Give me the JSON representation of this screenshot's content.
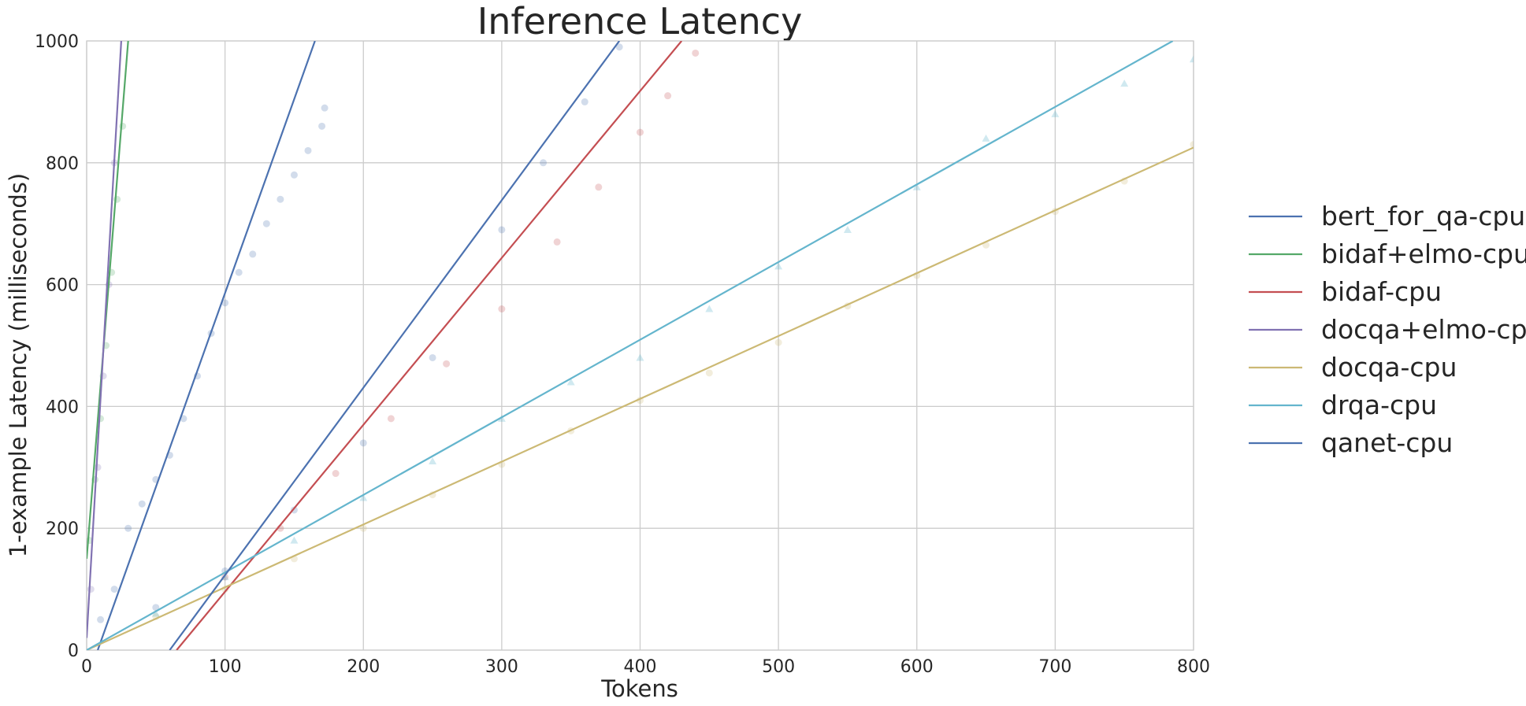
{
  "chart_data": {
    "type": "scatter",
    "title": "Inference Latency",
    "xlabel": "Tokens",
    "ylabel": "1-example Latency (milliseconds)",
    "xlim": [
      0,
      800
    ],
    "ylim": [
      0,
      1000
    ],
    "xticks": [
      "0",
      "100",
      "200",
      "300",
      "400",
      "500",
      "600",
      "700",
      "800"
    ],
    "yticks": [
      "0",
      "200",
      "400",
      "600",
      "800",
      "1000"
    ],
    "grid": true,
    "legend_position": "right",
    "series": [
      {
        "name": "bert_for_qa-cpu",
        "color": "#4c72b0",
        "marker": "circle",
        "fit_line": [
          [
            8,
            0
          ],
          [
            165,
            1000
          ]
        ],
        "points": [
          [
            10,
            50
          ],
          [
            20,
            100
          ],
          [
            30,
            200
          ],
          [
            40,
            240
          ],
          [
            50,
            280
          ],
          [
            60,
            320
          ],
          [
            70,
            380
          ],
          [
            80,
            450
          ],
          [
            90,
            520
          ],
          [
            100,
            570
          ],
          [
            110,
            620
          ],
          [
            120,
            650
          ],
          [
            130,
            700
          ],
          [
            140,
            740
          ],
          [
            150,
            780
          ],
          [
            160,
            820
          ],
          [
            170,
            860
          ],
          [
            172,
            890
          ]
        ]
      },
      {
        "name": "bidaf+elmo-cpu",
        "color": "#55a868",
        "marker": "circle",
        "fit_line": [
          [
            0,
            150
          ],
          [
            30,
            1000
          ]
        ],
        "points": [
          [
            2,
            180
          ],
          [
            6,
            280
          ],
          [
            10,
            380
          ],
          [
            14,
            500
          ],
          [
            18,
            620
          ],
          [
            22,
            740
          ],
          [
            26,
            860
          ]
        ]
      },
      {
        "name": "bidaf-cpu",
        "color": "#c44e52",
        "marker": "circle",
        "fit_line": [
          [
            65,
            0
          ],
          [
            430,
            1000
          ]
        ],
        "points": [
          [
            100,
            120
          ],
          [
            140,
            200
          ],
          [
            180,
            290
          ],
          [
            220,
            380
          ],
          [
            260,
            470
          ],
          [
            300,
            560
          ],
          [
            340,
            670
          ],
          [
            370,
            760
          ],
          [
            400,
            850
          ],
          [
            420,
            910
          ],
          [
            440,
            980
          ]
        ]
      },
      {
        "name": "docqa+elmo-cpu",
        "color": "#8172b2",
        "marker": "circle",
        "fit_line": [
          [
            0,
            20
          ],
          [
            25,
            1000
          ]
        ],
        "points": [
          [
            3,
            100
          ],
          [
            8,
            300
          ],
          [
            12,
            450
          ],
          [
            16,
            600
          ],
          [
            20,
            800
          ]
        ]
      },
      {
        "name": "docqa-cpu",
        "color": "#ccb974",
        "marker": "circle",
        "fit_line": [
          [
            0,
            0
          ],
          [
            800,
            825
          ]
        ],
        "points": [
          [
            50,
            55
          ],
          [
            100,
            100
          ],
          [
            150,
            150
          ],
          [
            200,
            200
          ],
          [
            250,
            255
          ],
          [
            300,
            305
          ],
          [
            350,
            360
          ],
          [
            400,
            410
          ],
          [
            450,
            455
          ],
          [
            500,
            505
          ],
          [
            550,
            565
          ],
          [
            600,
            615
          ],
          [
            650,
            665
          ],
          [
            700,
            720
          ],
          [
            750,
            770
          ],
          [
            800,
            830
          ]
        ]
      },
      {
        "name": "drqa-cpu",
        "color": "#64b5cd",
        "marker": "triangle",
        "fit_line": [
          [
            0,
            0
          ],
          [
            785,
            1000
          ]
        ],
        "points": [
          [
            50,
            60
          ],
          [
            100,
            120
          ],
          [
            150,
            180
          ],
          [
            200,
            250
          ],
          [
            250,
            310
          ],
          [
            300,
            380
          ],
          [
            350,
            440
          ],
          [
            400,
            480
          ],
          [
            450,
            560
          ],
          [
            500,
            630
          ],
          [
            550,
            690
          ],
          [
            600,
            760
          ],
          [
            650,
            840
          ],
          [
            700,
            880
          ],
          [
            750,
            930
          ],
          [
            800,
            970
          ]
        ]
      },
      {
        "name": "qanet-cpu",
        "color": "#4c72b0",
        "marker": "circle",
        "fit_line": [
          [
            60,
            0
          ],
          [
            385,
            1000
          ]
        ],
        "points": [
          [
            50,
            70
          ],
          [
            100,
            130
          ],
          [
            150,
            230
          ],
          [
            200,
            340
          ],
          [
            250,
            480
          ],
          [
            300,
            690
          ],
          [
            330,
            800
          ],
          [
            360,
            900
          ],
          [
            385,
            990
          ]
        ]
      }
    ]
  }
}
